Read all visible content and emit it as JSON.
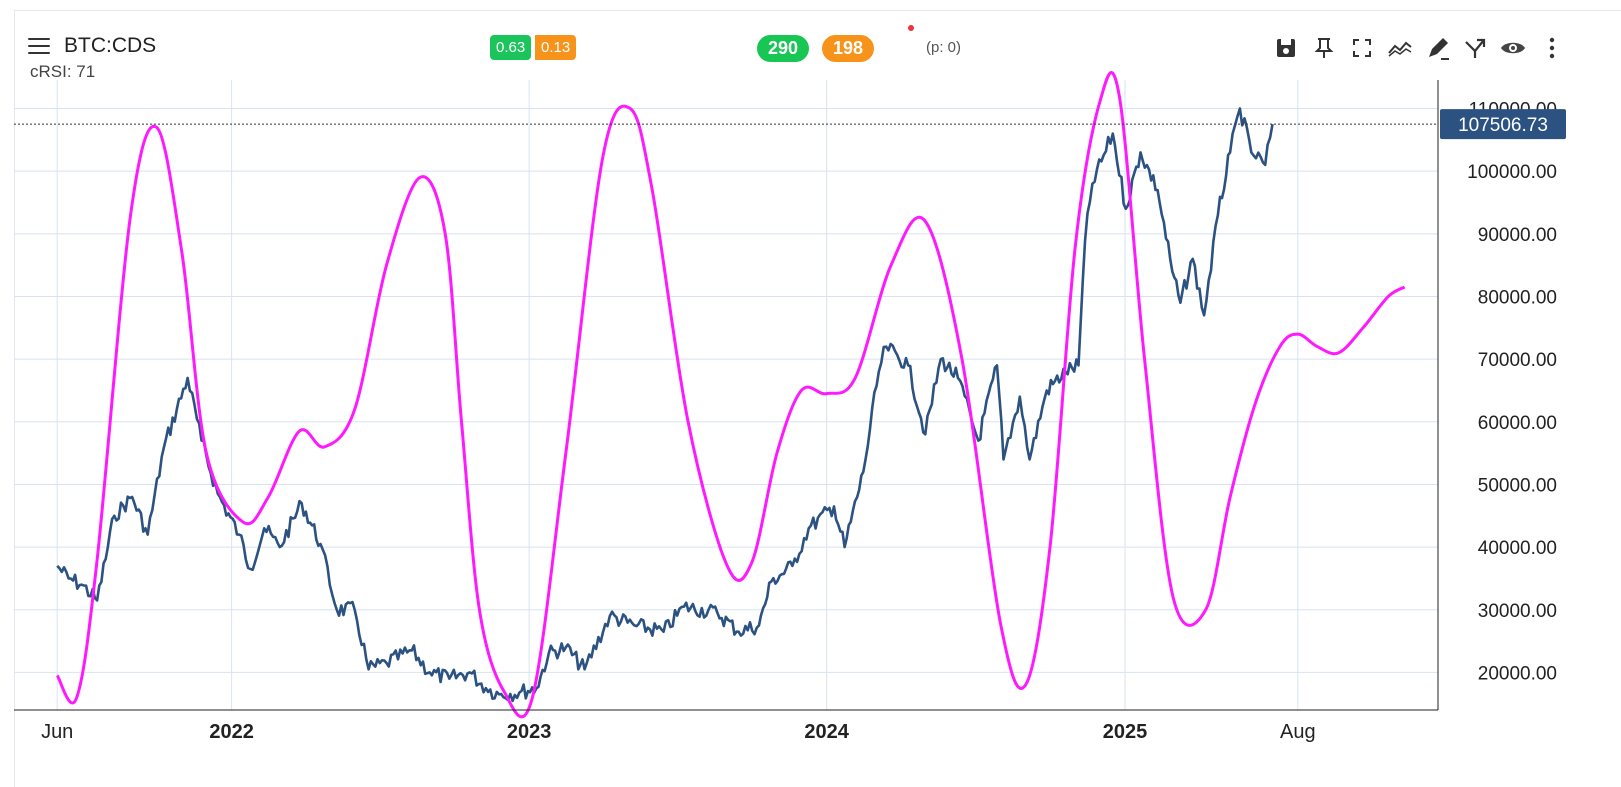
{
  "header": {
    "symbol": "BTC:CDS",
    "indicator": "cRSI: 71",
    "badge_left_1": "0.63",
    "badge_left_2": "0.13",
    "pill_1": "290",
    "pill_2": "198",
    "pill_info": "(p: 0)"
  },
  "toolbar": {
    "icons": [
      "save-icon",
      "pin-icon",
      "fullscreen-icon",
      "trend-icon",
      "draw-icon",
      "fork-icon",
      "eye-icon",
      "more-icon"
    ]
  },
  "colors": {
    "price": "#2c5282",
    "cycle": "#ff19ff",
    "last_price_bg": "#2c5282",
    "grid": "#d8e3ef"
  },
  "chart_data": {
    "type": "line",
    "last_price": "107506.73",
    "y_ticks": [
      20000,
      30000,
      40000,
      50000,
      60000,
      70000,
      80000,
      90000,
      100000,
      110000
    ],
    "y_tick_labels": [
      "20000.00",
      "30000.00",
      "40000.00",
      "50000.00",
      "60000.00",
      "70000.00",
      "80000.00",
      "90000.00",
      "100000.00",
      "110000.00"
    ],
    "ylim": [
      14000,
      112000
    ],
    "xlim": [
      "2021-04-09",
      "2026-01-20"
    ],
    "x_ticks": [
      {
        "date": "2021-06-01",
        "label": "Jun",
        "bold": false
      },
      {
        "date": "2022-01-01",
        "label": "2022",
        "bold": true
      },
      {
        "date": "2023-01-01",
        "label": "2023",
        "bold": true
      },
      {
        "date": "2024-01-01",
        "label": "2024",
        "bold": true
      },
      {
        "date": "2025-01-01",
        "label": "2025",
        "bold": true
      },
      {
        "date": "2025-08-01",
        "label": "Aug",
        "bold": false
      }
    ],
    "series": [
      {
        "type": "price",
        "x": [
          "2021-06-01",
          "2021-06-15",
          "2021-07-01",
          "2021-07-20",
          "2021-08-10",
          "2021-09-01",
          "2021-09-20",
          "2021-10-10",
          "2021-11-08",
          "2021-11-25",
          "2021-12-15",
          "2022-01-10",
          "2022-01-24",
          "2022-02-10",
          "2022-03-01",
          "2022-03-28",
          "2022-04-20",
          "2022-05-10",
          "2022-06-01",
          "2022-06-18",
          "2022-07-10",
          "2022-08-10",
          "2022-09-01",
          "2022-09-25",
          "2022-10-20",
          "2022-11-09",
          "2022-11-25",
          "2022-12-20",
          "2023-01-10",
          "2023-01-25",
          "2023-02-15",
          "2023-03-10",
          "2023-04-10",
          "2023-05-10",
          "2023-06-15",
          "2023-07-10",
          "2023-08-20",
          "2023-09-15",
          "2023-10-10",
          "2023-10-25",
          "2023-11-20",
          "2023-12-10",
          "2024-01-10",
          "2024-01-23",
          "2024-02-15",
          "2024-03-05",
          "2024-03-14",
          "2024-04-10",
          "2024-05-01",
          "2024-05-20",
          "2024-06-10",
          "2024-07-05",
          "2024-07-28",
          "2024-08-05",
          "2024-08-25",
          "2024-09-06",
          "2024-09-27",
          "2024-10-20",
          "2024-11-05",
          "2024-11-13",
          "2024-11-22",
          "2024-12-17",
          "2025-01-02",
          "2025-01-20",
          "2025-02-10",
          "2025-02-28",
          "2025-03-10",
          "2025-03-25",
          "2025-04-08",
          "2025-04-25",
          "2025-05-10",
          "2025-05-22",
          "2025-06-05",
          "2025-06-22",
          "2025-07-01"
        ],
        "y": [
          37000,
          35000,
          34000,
          31500,
          45000,
          48000,
          42000,
          56000,
          67000,
          57000,
          48500,
          42000,
          36500,
          43000,
          40000,
          47000,
          40500,
          30000,
          30000,
          20500,
          21500,
          23500,
          20000,
          19000,
          20000,
          17500,
          16500,
          16800,
          17500,
          23000,
          24000,
          20500,
          29000,
          27500,
          26500,
          30500,
          29500,
          26500,
          27500,
          34500,
          37000,
          43000,
          46500,
          40000,
          52000,
          68000,
          72000,
          69000,
          58000,
          70000,
          67000,
          57000,
          69000,
          54000,
          64000,
          54000,
          65000,
          68000,
          69000,
          89000,
          98000,
          106000,
          94000,
          103000,
          97000,
          84000,
          79000,
          86000,
          77000,
          93000,
          103000,
          110000,
          103000,
          101000,
          107506.73
        ]
      },
      {
        "type": "cycle",
        "x": [
          "2021-06-01",
          "2021-06-25",
          "2021-07-20",
          "2021-08-30",
          "2021-10-01",
          "2021-11-01",
          "2021-12-01",
          "2022-01-15",
          "2022-02-15",
          "2022-03-25",
          "2022-04-25",
          "2022-06-01",
          "2022-07-10",
          "2022-08-20",
          "2022-09-20",
          "2022-10-10",
          "2022-11-01",
          "2022-12-01",
          "2023-01-05",
          "2023-02-15",
          "2023-04-01",
          "2023-05-05",
          "2023-06-01",
          "2023-07-15",
          "2023-09-01",
          "2023-10-01",
          "2023-11-01",
          "2023-12-01",
          "2024-01-01",
          "2024-02-05",
          "2024-03-20",
          "2024-05-01",
          "2024-06-15",
          "2024-08-01",
          "2024-09-01",
          "2024-10-01",
          "2024-11-01",
          "2024-12-01",
          "2024-12-25",
          "2025-01-25",
          "2025-03-01",
          "2025-04-10",
          "2025-05-10",
          "2025-06-10",
          "2025-07-10",
          "2025-08-01",
          "2025-08-25",
          "2025-09-20",
          "2025-10-20",
          "2025-11-20",
          "2025-12-10"
        ],
        "y": [
          19500,
          16000,
          38000,
          93000,
          107000,
          87000,
          55000,
          44000,
          48000,
          58500,
          56000,
          62000,
          85000,
          99000,
          90000,
          60000,
          30000,
          17000,
          16000,
          55000,
          102000,
          110000,
          97000,
          60000,
          37000,
          37500,
          55000,
          65000,
          64500,
          67000,
          85000,
          92000,
          70000,
          28000,
          18000,
          40000,
          88000,
          111000,
          112000,
          70000,
          32000,
          30000,
          48000,
          63000,
          72000,
          74000,
          72000,
          71000,
          75000,
          80000,
          81500
        ]
      }
    ]
  }
}
